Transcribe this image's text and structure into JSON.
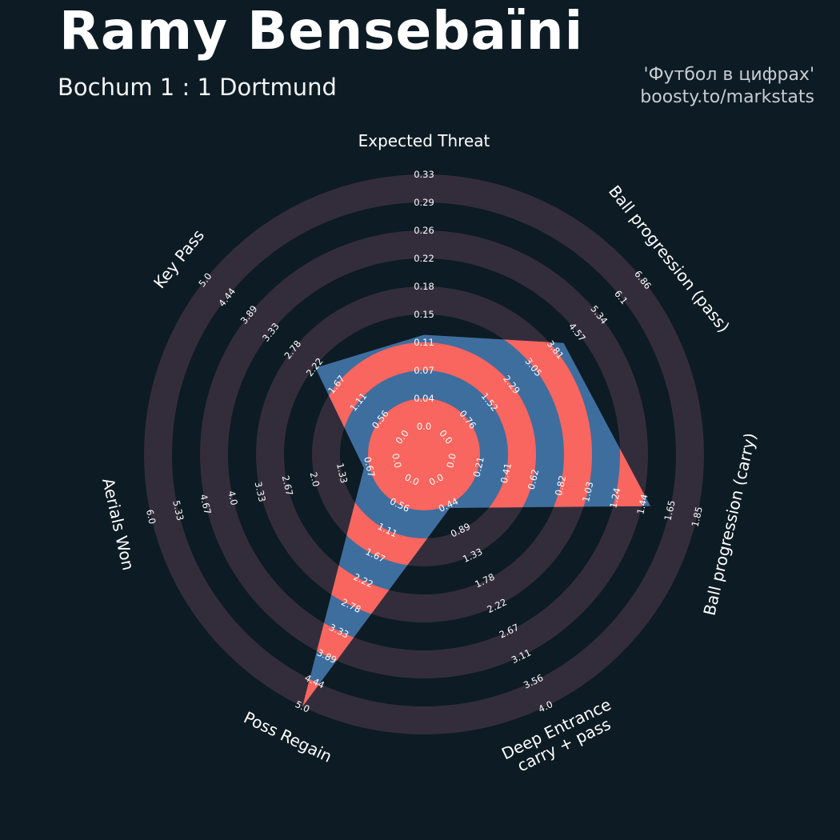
{
  "header": {
    "title": "Ramy Bensebaïni",
    "subtitle": "Bochum 1 : 1 Dortmund",
    "credit": {
      "line1": "'Футбол в цифрах'",
      "line2": "boosty.to/markstats"
    }
  },
  "chart_data": {
    "type": "radar",
    "title": "Ramy Bensebaïni — Bochum 1 : 1 Dortmund",
    "num_rings": 10,
    "legend_position": "none",
    "grid": "concentric-rings",
    "params": [
      {
        "label": [
          "Expected Threat"
        ],
        "min": 0,
        "max": 0.33,
        "value": 0.12,
        "ticks": [
          "0.0",
          "0.04",
          "0.07",
          "0.11",
          "0.15",
          "0.18",
          "0.22",
          "0.26",
          "0.29",
          "0.33"
        ]
      },
      {
        "label": [
          "Ball progression (pass)"
        ],
        "min": 0,
        "max": 6.86,
        "value": 4.1,
        "ticks": [
          "0.0",
          "0.76",
          "1.52",
          "2.29",
          "3.05",
          "3.81",
          "4.57",
          "5.34",
          "6.1",
          "6.86"
        ]
      },
      {
        "label": [
          "Ball progression (carry)"
        ],
        "min": 0,
        "max": 1.85,
        "value": 1.5,
        "ticks": [
          "0.0",
          "0.21",
          "0.41",
          "0.62",
          "0.82",
          "1.03",
          "1.24",
          "1.44",
          "1.65",
          "1.85"
        ]
      },
      {
        "label": [
          "Deep Entrance",
          "carry + pass"
        ],
        "min": 0,
        "max": 4.0,
        "value": 0.5,
        "ticks": [
          "0.0",
          "0.44",
          "0.89",
          "1.33",
          "1.78",
          "2.22",
          "2.67",
          "3.11",
          "3.56",
          "4.0"
        ]
      },
      {
        "label": [
          "Poss Regain"
        ],
        "min": 0,
        "max": 5.0,
        "value": 5.0,
        "ticks": [
          "0.0",
          "0.56",
          "1.11",
          "1.67",
          "2.22",
          "2.78",
          "3.33",
          "3.89",
          "4.44",
          "5.0"
        ]
      },
      {
        "label": [
          "Aerials Won"
        ],
        "min": 0,
        "max": 6.0,
        "value": 0.8,
        "ticks": [
          "0.0",
          "0.67",
          "1.33",
          "2.0",
          "2.67",
          "3.33",
          "4.0",
          "4.67",
          "5.33",
          "6.0"
        ]
      },
      {
        "label": [
          "Key Pass"
        ],
        "min": 0,
        "max": 5.0,
        "value": 2.2,
        "ticks": [
          "0.0",
          "0.56",
          "1.11",
          "1.67",
          "2.22",
          "2.78",
          "3.33",
          "3.89",
          "4.44",
          "5.0"
        ]
      }
    ],
    "colors": {
      "background": "#0d1b24",
      "ring": "#332d3b",
      "radar_fill": "#3e6e9e",
      "ring_inner": "#f9655f",
      "text": "#ffffff",
      "credit_text": "#c7ccd2"
    }
  }
}
